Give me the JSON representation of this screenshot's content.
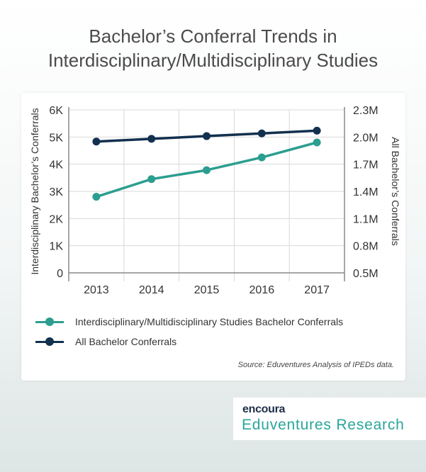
{
  "title_lines": [
    "Bachelor’s Conferral Trends in",
    "Interdisciplinary/Multidisciplinary Studies"
  ],
  "source": "Source: Eduventures Analysis of IPEDs data.",
  "brand": {
    "logo": "encoura",
    "name": "Eduventures Research"
  },
  "colors": {
    "series1": "#2b9e8f",
    "series2": "#13304f",
    "grid": "#d9d9d9",
    "axis": "#888888",
    "text": "#333333"
  },
  "chart_data": {
    "type": "line",
    "x": [
      "2013",
      "2014",
      "2015",
      "2016",
      "2017"
    ],
    "series": [
      {
        "name": "Interdisciplinary/Multidisciplinary Studies Bachelor Conferrals",
        "axis": "left",
        "values": [
          2800,
          3450,
          3780,
          4250,
          4800
        ]
      },
      {
        "name": "All Bachelor Conferrals",
        "axis": "right",
        "values": [
          1.95,
          1.98,
          2.01,
          2.04,
          2.07
        ]
      }
    ],
    "ylabel": "Interdisciplinary Bachelor’s Conferrals",
    "ylabel_right": "All Bachelor’s Conferrals",
    "ylim": [
      0,
      6000
    ],
    "ylim_right": [
      0.5,
      2.3
    ],
    "yticks": [
      "0",
      "1K",
      "2K",
      "3K",
      "4K",
      "5K",
      "6K"
    ],
    "yticks_right": [
      "0.5M",
      "0.8M",
      "1.1M",
      "1.4M",
      "1.7M",
      "2.0M",
      "2.3M"
    ],
    "grid": true,
    "legend_position": "bottom-left"
  }
}
